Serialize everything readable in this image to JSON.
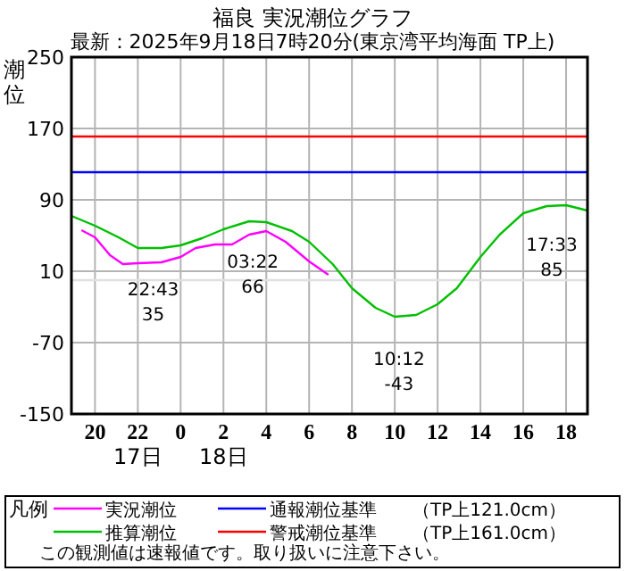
{
  "chart_data": {
    "type": "line",
    "title": "福良 実況潮位グラフ",
    "subtitle": "最新：2025年9月18日7時20分(東京湾平均海面 TP上)",
    "ylabel": "潮位",
    "legend_title": "凡例",
    "xlim": [
      "2025-09-17T18:54",
      "2025-09-18T19:00"
    ],
    "xticks": [
      {
        "value": "2025-09-17T20:00",
        "label": "20"
      },
      {
        "value": "2025-09-17T22:00",
        "label": "22\n17日"
      },
      {
        "value": "2025-09-18T00:00",
        "label": "0"
      },
      {
        "value": "2025-09-18T02:00",
        "label": "2\n18日"
      },
      {
        "value": "2025-09-18T04:00",
        "label": "4"
      },
      {
        "value": "2025-09-18T06:00",
        "label": "6"
      },
      {
        "value": "2025-09-18T08:00",
        "label": "8"
      },
      {
        "value": "2025-09-18T10:00",
        "label": "10"
      },
      {
        "value": "2025-09-18T12:00",
        "label": "12"
      },
      {
        "value": "2025-09-18T14:00",
        "label": "14"
      },
      {
        "value": "2025-09-18T16:00",
        "label": "16"
      },
      {
        "value": "2025-09-18T18:00",
        "label": "18"
      }
    ],
    "ylim": [
      -150,
      250
    ],
    "yticks": [
      -150,
      -70,
      10,
      90,
      170,
      250
    ],
    "grid": true,
    "legend": "bottom",
    "series": [
      {
        "name": "実況潮位",
        "color": "#ff00ff",
        "x": [
          "2025-09-17T19:22",
          "2025-09-17T20:00",
          "2025-09-17T20:42",
          "2025-09-17T21:18",
          "2025-09-17T22:00",
          "2025-09-17T23:06",
          "2025-09-18T00:00",
          "2025-09-18T00:42",
          "2025-09-18T01:36",
          "2025-09-18T02:24",
          "2025-09-18T03:12",
          "2025-09-18T04:00",
          "2025-09-18T04:54",
          "2025-09-18T06:00",
          "2025-09-18T06:54"
        ],
        "values": [
          56,
          48,
          28,
          18,
          19,
          20,
          26,
          36,
          40,
          40,
          51,
          55,
          43,
          21,
          6
        ]
      },
      {
        "name": "推算潮位",
        "color": "#00c000",
        "x": [
          "2025-09-17T18:54",
          "2025-09-17T20:00",
          "2025-09-17T21:06",
          "2025-09-17T22:00",
          "2025-09-17T23:06",
          "2025-09-18T00:00",
          "2025-09-18T01:00",
          "2025-09-18T02:00",
          "2025-09-18T03:12",
          "2025-09-18T04:00",
          "2025-09-18T05:12",
          "2025-09-18T06:00",
          "2025-09-18T07:06",
          "2025-09-18T08:00",
          "2025-09-18T09:06",
          "2025-09-18T10:00",
          "2025-09-18T11:00",
          "2025-09-18T12:00",
          "2025-09-18T12:54",
          "2025-09-18T14:00",
          "2025-09-18T14:54",
          "2025-09-18T16:00",
          "2025-09-18T17:06",
          "2025-09-18T18:00",
          "2025-09-18T19:00"
        ],
        "values": [
          72,
          61,
          48,
          36,
          36,
          39,
          47,
          57,
          66,
          65,
          55,
          43,
          18,
          -9,
          -31,
          -41,
          -39,
          -27,
          -9,
          26,
          51,
          75,
          83,
          84,
          78
        ]
      }
    ],
    "ref_lines": [
      {
        "axis": "y",
        "value": 0,
        "color": "#e0e0e0"
      },
      {
        "axis": "y",
        "value": 121.0,
        "label": "通報潮位基準　　（TP上121.0cm）",
        "color": "#0000ff"
      },
      {
        "axis": "y",
        "value": 161.0,
        "label": "警戒潮位基準　　（TP上161.0cm）",
        "color": "#ff0000"
      }
    ],
    "annotations": [
      {
        "text": "22:43\n35",
        "x": "2025-09-17T22:43",
        "y": 35
      },
      {
        "text": "03:22\n66",
        "x": "2025-09-18T03:22",
        "y": 66
      },
      {
        "text": "10:12\n-43",
        "x": "2025-09-18T10:12",
        "y": -43
      },
      {
        "text": "17:33\n85",
        "x": "2025-09-18T17:33",
        "y": 85
      },
      "この観測値は速報値です。取り扱いに注意下さい。"
    ]
  }
}
